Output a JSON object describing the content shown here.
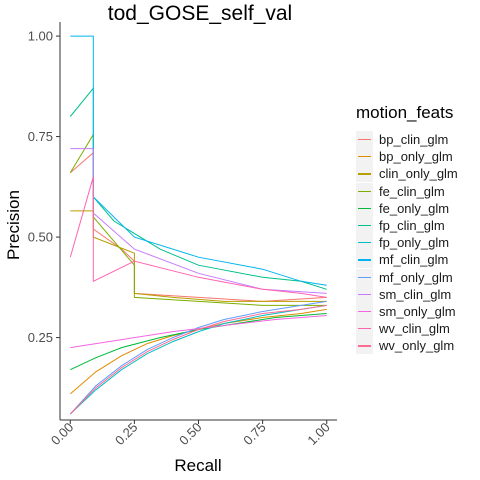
{
  "chart_data": {
    "type": "line",
    "title": "tod_GOSE_self_val",
    "xlabel": "Recall",
    "ylabel": "Precision",
    "xlim": [
      -0.04,
      1.04
    ],
    "ylim": [
      0.045,
      1.035
    ],
    "x_ticks": [
      "0.00",
      "0.25",
      "0.50",
      "0.75",
      "1.00"
    ],
    "y_ticks": [
      "0.25",
      "0.50",
      "0.75",
      "1.00"
    ],
    "grid": false,
    "legend_title": "motion_feats",
    "legend_position": "right",
    "series": [
      {
        "name": "bp_clin_glm",
        "color": "#F8766D",
        "points": [
          [
            0.0,
            0.66
          ],
          [
            0.09,
            0.71
          ],
          [
            0.09,
            0.52
          ],
          [
            0.2,
            0.47
          ],
          [
            0.25,
            0.44
          ],
          [
            0.25,
            0.36
          ],
          [
            0.5,
            0.35
          ],
          [
            0.75,
            0.34
          ],
          [
            1.0,
            0.35
          ]
        ]
      },
      {
        "name": "bp_only_glm",
        "color": "#DE8C00",
        "points": [
          [
            0.0,
            0.11
          ],
          [
            0.1,
            0.165
          ],
          [
            0.2,
            0.205
          ],
          [
            0.3,
            0.235
          ],
          [
            0.4,
            0.255
          ],
          [
            0.5,
            0.27
          ],
          [
            0.6,
            0.285
          ],
          [
            0.75,
            0.3
          ],
          [
            0.9,
            0.31
          ],
          [
            1.0,
            0.32
          ]
        ]
      },
      {
        "name": "clin_only_glm",
        "color": "#B79F00",
        "points": [
          [
            0.0,
            0.565
          ],
          [
            0.09,
            0.565
          ],
          [
            0.09,
            0.5
          ],
          [
            0.25,
            0.46
          ],
          [
            0.25,
            0.36
          ],
          [
            0.4,
            0.35
          ],
          [
            0.6,
            0.34
          ],
          [
            0.9,
            0.34
          ],
          [
            1.0,
            0.34
          ]
        ]
      },
      {
        "name": "fe_clin_glm",
        "color": "#7CAE00",
        "points": [
          [
            0.0,
            0.66
          ],
          [
            0.09,
            0.755
          ],
          [
            0.09,
            0.55
          ],
          [
            0.25,
            0.43
          ],
          [
            0.25,
            0.35
          ],
          [
            0.5,
            0.34
          ],
          [
            0.75,
            0.33
          ],
          [
            1.0,
            0.33
          ]
        ]
      },
      {
        "name": "fe_only_glm",
        "color": "#00BA38",
        "points": [
          [
            0.0,
            0.17
          ],
          [
            0.1,
            0.2
          ],
          [
            0.2,
            0.225
          ],
          [
            0.35,
            0.25
          ],
          [
            0.5,
            0.27
          ],
          [
            0.65,
            0.285
          ],
          [
            0.8,
            0.3
          ],
          [
            1.0,
            0.31
          ]
        ]
      },
      {
        "name": "fp_clin_glm",
        "color": "#00C08B",
        "points": [
          [
            0.0,
            0.8
          ],
          [
            0.09,
            0.87
          ],
          [
            0.09,
            0.6
          ],
          [
            0.17,
            0.54
          ],
          [
            0.35,
            0.47
          ],
          [
            0.5,
            0.43
          ],
          [
            0.75,
            0.4
          ],
          [
            0.9,
            0.39
          ],
          [
            1.0,
            0.37
          ]
        ]
      },
      {
        "name": "fp_only_glm",
        "color": "#00BFC4",
        "points": [
          [
            0.0,
            0.06
          ],
          [
            0.1,
            0.12
          ],
          [
            0.2,
            0.17
          ],
          [
            0.3,
            0.21
          ],
          [
            0.4,
            0.24
          ],
          [
            0.5,
            0.265
          ],
          [
            0.6,
            0.285
          ],
          [
            0.75,
            0.305
          ],
          [
            0.9,
            0.32
          ],
          [
            1.0,
            0.33
          ]
        ]
      },
      {
        "name": "mf_clin_glm",
        "color": "#00B4F0",
        "points": [
          [
            0.0,
            1.0
          ],
          [
            0.09,
            1.0
          ],
          [
            0.09,
            0.6
          ],
          [
            0.25,
            0.5
          ],
          [
            0.5,
            0.45
          ],
          [
            0.75,
            0.42
          ],
          [
            0.9,
            0.39
          ],
          [
            1.0,
            0.38
          ]
        ]
      },
      {
        "name": "mf_only_glm",
        "color": "#619CFF",
        "points": [
          [
            0.0,
            0.06
          ],
          [
            0.1,
            0.13
          ],
          [
            0.2,
            0.18
          ],
          [
            0.3,
            0.22
          ],
          [
            0.4,
            0.25
          ],
          [
            0.5,
            0.275
          ],
          [
            0.6,
            0.295
          ],
          [
            0.75,
            0.315
          ],
          [
            0.9,
            0.33
          ],
          [
            1.0,
            0.34
          ]
        ]
      },
      {
        "name": "sm_clin_glm",
        "color": "#C77CFF",
        "points": [
          [
            0.0,
            0.72
          ],
          [
            0.09,
            0.72
          ],
          [
            0.09,
            0.56
          ],
          [
            0.25,
            0.47
          ],
          [
            0.5,
            0.41
          ],
          [
            0.75,
            0.37
          ],
          [
            1.0,
            0.36
          ]
        ]
      },
      {
        "name": "sm_only_glm",
        "color": "#F564E3",
        "points": [
          [
            0.0,
            0.225
          ],
          [
            0.2,
            0.245
          ],
          [
            0.4,
            0.265
          ],
          [
            0.6,
            0.28
          ],
          [
            0.8,
            0.295
          ],
          [
            1.0,
            0.305
          ]
        ]
      },
      {
        "name": "wv_clin_glm",
        "color": "#FF64B0",
        "points": [
          [
            0.0,
            0.45
          ],
          [
            0.09,
            0.65
          ],
          [
            0.09,
            0.39
          ],
          [
            0.25,
            0.44
          ],
          [
            0.5,
            0.4
          ],
          [
            0.75,
            0.37
          ],
          [
            0.9,
            0.36
          ],
          [
            1.0,
            0.35
          ]
        ]
      },
      {
        "name": "wv_only_glm",
        "color": "#FF6C91",
        "points": [
          [
            0.0,
            0.06
          ],
          [
            0.1,
            0.125
          ],
          [
            0.2,
            0.175
          ],
          [
            0.3,
            0.215
          ],
          [
            0.4,
            0.245
          ],
          [
            0.5,
            0.27
          ],
          [
            0.6,
            0.29
          ],
          [
            0.75,
            0.31
          ],
          [
            0.9,
            0.32
          ],
          [
            1.0,
            0.33
          ]
        ]
      }
    ]
  }
}
